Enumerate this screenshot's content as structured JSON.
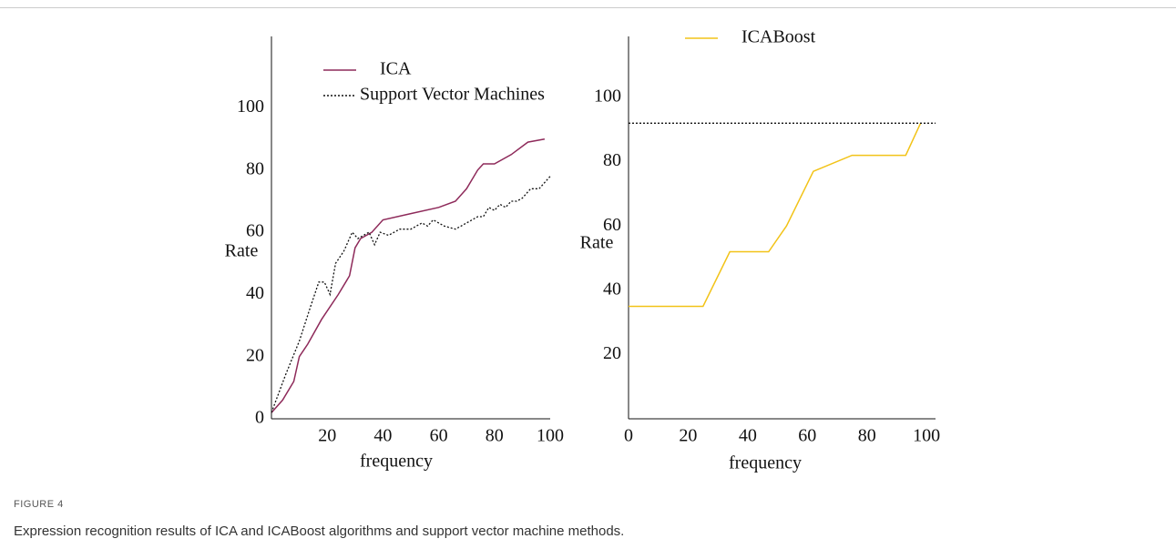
{
  "figure": {
    "label": "FIGURE 4",
    "caption": "Expression recognition results of ICA and ICABoost algorithms and support vector machine methods."
  },
  "chart_data": [
    {
      "type": "line",
      "xlabel": "frequency",
      "ylabel": "Rate",
      "xlim": [
        0,
        100
      ],
      "ylim": [
        0,
        123
      ],
      "xticks": [
        20,
        40,
        60,
        80,
        100
      ],
      "yticks": [
        0,
        20,
        40,
        60,
        80,
        100
      ],
      "series": [
        {
          "name": "ICA",
          "color": "#8e2a5a",
          "dash": "solid",
          "x": [
            0,
            4,
            8,
            10,
            13,
            18,
            24,
            28,
            30,
            32,
            36,
            40,
            50,
            60,
            66,
            70,
            74,
            76,
            80,
            86,
            92,
            98
          ],
          "values": [
            2,
            6,
            12,
            20,
            24,
            32,
            40,
            46,
            55,
            58,
            60,
            64,
            66,
            68,
            70,
            74,
            80,
            82,
            82,
            85,
            89,
            90
          ]
        },
        {
          "name": "Support Vector Machines",
          "color": "#111111",
          "dash": "dotted",
          "x": [
            0,
            5,
            10,
            14,
            17,
            19,
            21,
            23,
            26,
            29,
            31,
            33,
            35,
            37,
            39,
            42,
            46,
            50,
            54,
            56,
            58,
            62,
            66,
            70,
            74,
            76,
            78,
            80,
            82,
            84,
            86,
            88,
            90,
            93,
            96,
            100
          ],
          "values": [
            2,
            14,
            25,
            36,
            44,
            44,
            40,
            50,
            54,
            60,
            58,
            59,
            60,
            56,
            60,
            59,
            61,
            61,
            63,
            62,
            64,
            62,
            61,
            63,
            65,
            65,
            68,
            67,
            69,
            68,
            70,
            70,
            71,
            74,
            74,
            78
          ]
        }
      ]
    },
    {
      "type": "line",
      "xlabel": "frequency",
      "ylabel": "Rate",
      "xlim": [
        0,
        103
      ],
      "ylim": [
        0,
        119
      ],
      "xticks": [
        0,
        20,
        40,
        60,
        80,
        100
      ],
      "yticks": [
        20,
        40,
        60,
        80,
        100
      ],
      "series": [
        {
          "name": "ICABoost",
          "color": "#f2c318",
          "dash": "solid",
          "x": [
            0,
            25,
            34,
            47,
            53,
            62,
            75,
            93,
            98
          ],
          "values": [
            35,
            35,
            52,
            52,
            60,
            77,
            82,
            82,
            92
          ]
        },
        {
          "color": "#111111",
          "dash": "dotted",
          "x": [
            0,
            103
          ],
          "values": [
            92,
            92
          ]
        }
      ]
    }
  ]
}
